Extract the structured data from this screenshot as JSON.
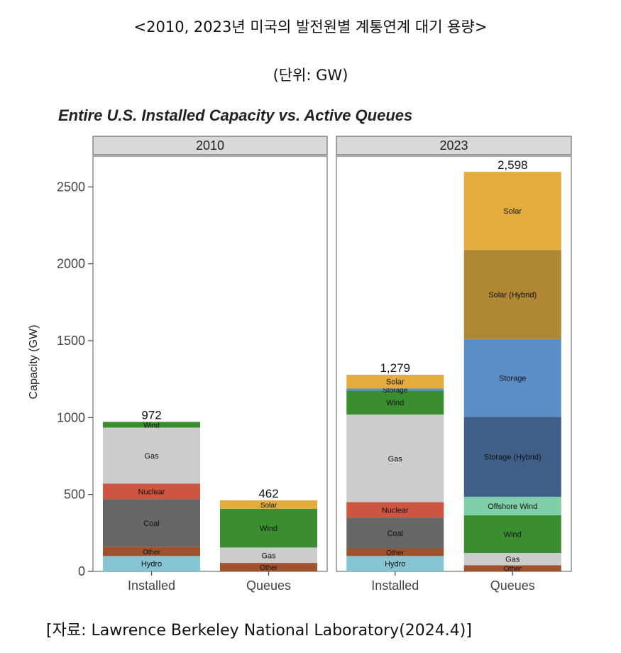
{
  "header": {
    "title": "<2010, 2023년 미국의 발전원별 계통연계 대기 용량>",
    "unit": "(단위: GW)"
  },
  "footer": {
    "source": "[자료: Lawrence Berkeley National Laboratory(2024.4)]"
  },
  "chart_data": {
    "type": "bar",
    "stacked": true,
    "title": "Entire U.S. Installed Capacity vs. Active Queues",
    "ylabel": "Capacity (GW)",
    "xlabel": "",
    "ylim": [
      0,
      2700
    ],
    "yticks": [
      0,
      500,
      1000,
      1500,
      2000,
      2500
    ],
    "grid": false,
    "facets": [
      {
        "label": "2010",
        "bars": [
          {
            "category": "Installed",
            "total_label": "972",
            "segments": [
              {
                "label": "Hydro",
                "value": 100,
                "color": "#86c5d3"
              },
              {
                "label": "Other",
                "value": 60,
                "color": "#a0522d"
              },
              {
                "label": "Coal",
                "value": 310,
                "color": "#666666"
              },
              {
                "label": "Nuclear",
                "value": 100,
                "color": "#cd5542"
              },
              {
                "label": "Gas",
                "value": 365,
                "color": "#cccccc"
              },
              {
                "label": "Wind",
                "value": 37,
                "color": "#3b8e30"
              }
            ]
          },
          {
            "category": "Queues",
            "total_label": "462",
            "segments": [
              {
                "label": "Other",
                "value": 55,
                "color": "#a0522d"
              },
              {
                "label": "Gas",
                "value": 100,
                "color": "#cccccc"
              },
              {
                "label": "Wind",
                "value": 252,
                "color": "#3b8e30"
              },
              {
                "label": "Solar",
                "value": 55,
                "color": "#e3ac3c"
              }
            ]
          }
        ]
      },
      {
        "label": "2023",
        "bars": [
          {
            "category": "Installed",
            "total_label": "1,279",
            "segments": [
              {
                "label": "Hydro",
                "value": 100,
                "color": "#86c5d3"
              },
              {
                "label": "Other",
                "value": 50,
                "color": "#a0522d"
              },
              {
                "label": "Coal",
                "value": 200,
                "color": "#666666"
              },
              {
                "label": "Nuclear",
                "value": 100,
                "color": "#cd5542"
              },
              {
                "label": "Gas",
                "value": 570,
                "color": "#cccccc"
              },
              {
                "label": "Wind",
                "value": 155,
                "color": "#3b8e30"
              },
              {
                "label": "Storage",
                "value": 15,
                "color": "#5b8ec7"
              },
              {
                "label": "Solar",
                "value": 89,
                "color": "#e3ac3c"
              }
            ]
          },
          {
            "category": "Queues",
            "total_label": "2,598",
            "segments": [
              {
                "label": "Other",
                "value": 40,
                "color": "#a0522d"
              },
              {
                "label": "Gas",
                "value": 80,
                "color": "#cccccc"
              },
              {
                "label": "Wind",
                "value": 245,
                "color": "#3b8e30"
              },
              {
                "label": "Offshore Wind",
                "value": 120,
                "color": "#7fcfa8"
              },
              {
                "label": "Storage (Hybrid)",
                "value": 520,
                "color": "#3f5f89"
              },
              {
                "label": "Storage",
                "value": 505,
                "color": "#5b8ec7"
              },
              {
                "label": "Solar (Hybrid)",
                "value": 580,
                "color": "#b08732"
              },
              {
                "label": "Solar",
                "value": 508,
                "color": "#e3ac3c"
              }
            ]
          }
        ]
      }
    ]
  }
}
